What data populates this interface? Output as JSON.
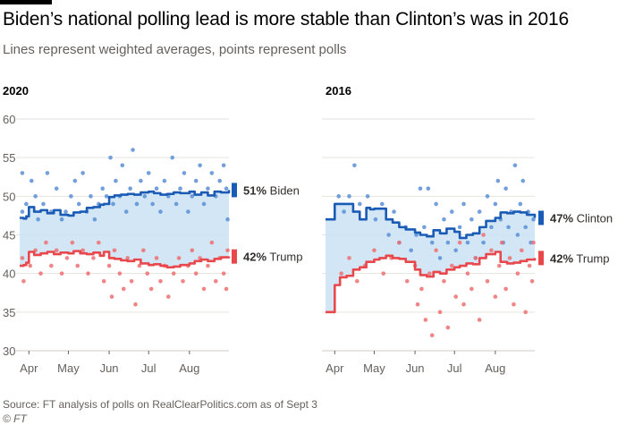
{
  "title": "Biden’s national polling lead is more stable than Clinton’s was in 2016",
  "subtitle": "Lines represent weighted averages, points represent polls",
  "source": "Source: FT analysis of polls on RealClearPolitics.com as of Sept 3",
  "credit": "© FT",
  "colors": {
    "dem": "#1a5bb5",
    "rep": "#e8474c",
    "dem_points": "#5b8fd6",
    "rep_points": "#ee6e70",
    "lead_fill": "#cde3f4",
    "grid": "#e6e2de",
    "axis_text": "#66605c"
  },
  "chart_data": [
    {
      "type": "line",
      "panel_title": "2020",
      "x_unit": "date (day of year)",
      "ylim": [
        30,
        60
      ],
      "yticks": [
        30,
        35,
        40,
        45,
        50,
        55,
        60
      ],
      "xlim": [
        "Mar 25",
        "Aug 31"
      ],
      "xtick_labels": [
        "Apr",
        "May",
        "Jun",
        "Jul",
        "Aug"
      ],
      "shaded_area": "between series",
      "grid": true,
      "series": [
        {
          "name": "Biden",
          "party": "dem",
          "end_label_value": "51%",
          "x": [
            "Mar 25",
            "Mar 28",
            "Mar 30",
            "Apr 1",
            "Apr 5",
            "Apr 10",
            "Apr 15",
            "Apr 20",
            "Apr 25",
            "May 1",
            "May 5",
            "May 10",
            "May 15",
            "May 20",
            "May 25",
            "May 28",
            "Jun 1",
            "Jun 5",
            "Jun 10",
            "Jun 15",
            "Jun 20",
            "Jun 25",
            "Jul 1",
            "Jul 5",
            "Jul 10",
            "Jul 15",
            "Jul 20",
            "Jul 25",
            "Aug 1",
            "Aug 5",
            "Aug 10",
            "Aug 15",
            "Aug 20",
            "Aug 25",
            "Aug 31"
          ],
          "values": [
            47.2,
            47.1,
            47.4,
            48.6,
            48.0,
            48.2,
            47.8,
            48.2,
            47.6,
            47.5,
            47.9,
            48.0,
            48.5,
            48.6,
            48.9,
            49.0,
            49.9,
            50.1,
            50.2,
            50.3,
            50.2,
            50.5,
            50.6,
            50.4,
            50.2,
            50.3,
            50.5,
            50.4,
            50.6,
            50.2,
            50.5,
            50.1,
            50.6,
            50.5,
            50.8
          ]
        },
        {
          "name": "Trump",
          "party": "rep",
          "end_label_value": "42%",
          "x": [
            "Mar 25",
            "Mar 28",
            "Mar 30",
            "Apr 1",
            "Apr 5",
            "Apr 10",
            "Apr 15",
            "Apr 20",
            "Apr 25",
            "May 1",
            "May 5",
            "May 10",
            "May 15",
            "May 20",
            "May 25",
            "May 28",
            "Jun 1",
            "Jun 5",
            "Jun 10",
            "Jun 15",
            "Jun 20",
            "Jun 25",
            "Jul 1",
            "Jul 5",
            "Jul 10",
            "Jul 15",
            "Jul 20",
            "Jul 25",
            "Aug 1",
            "Aug 5",
            "Aug 10",
            "Aug 15",
            "Aug 20",
            "Aug 25",
            "Aug 31"
          ],
          "values": [
            41.0,
            41.1,
            41.4,
            42.8,
            42.4,
            42.6,
            42.8,
            42.5,
            42.7,
            42.6,
            42.9,
            42.6,
            42.5,
            42.7,
            42.3,
            42.8,
            42.0,
            41.9,
            41.7,
            41.6,
            41.8,
            41.3,
            41.1,
            41.2,
            41.0,
            40.8,
            40.9,
            41.1,
            41.3,
            41.6,
            41.8,
            41.6,
            41.9,
            42.1,
            42.2
          ]
        }
      ],
      "poll_points": {
        "Biden": [
          [
            "Mar 27",
            53
          ],
          [
            "Mar 27",
            48
          ],
          [
            "Mar 30",
            49
          ],
          [
            "Apr 3",
            52
          ],
          [
            "Apr 6",
            50
          ],
          [
            "Apr 8",
            47
          ],
          [
            "Apr 12",
            49
          ],
          [
            "Apr 15",
            53
          ],
          [
            "Apr 18",
            48
          ],
          [
            "Apr 22",
            51
          ],
          [
            "Apr 26",
            47
          ],
          [
            "Apr 29",
            48
          ],
          [
            "May 3",
            50
          ],
          [
            "May 6",
            52
          ],
          [
            "May 9",
            49
          ],
          [
            "May 12",
            53
          ],
          [
            "May 15",
            48
          ],
          [
            "May 18",
            50
          ],
          [
            "May 21",
            47
          ],
          [
            "May 24",
            49
          ],
          [
            "May 27",
            51
          ],
          [
            "May 30",
            50
          ],
          [
            "Jun 2",
            55
          ],
          [
            "Jun 4",
            49
          ],
          [
            "Jun 6",
            52
          ],
          [
            "Jun 9",
            50
          ],
          [
            "Jun 11",
            54
          ],
          [
            "Jun 14",
            48
          ],
          [
            "Jun 17",
            51
          ],
          [
            "Jun 19",
            56
          ],
          [
            "Jun 22",
            49
          ],
          [
            "Jun 25",
            52
          ],
          [
            "Jun 28",
            50
          ],
          [
            "Jul 1",
            53
          ],
          [
            "Jul 4",
            49
          ],
          [
            "Jul 7",
            51
          ],
          [
            "Jul 10",
            48
          ],
          [
            "Jul 13",
            52
          ],
          [
            "Jul 16",
            50
          ],
          [
            "Jul 19",
            55
          ],
          [
            "Jul 22",
            49
          ],
          [
            "Jul 25",
            51
          ],
          [
            "Jul 28",
            53
          ],
          [
            "Jul 31",
            48
          ],
          [
            "Aug 3",
            50
          ],
          [
            "Aug 6",
            52
          ],
          [
            "Aug 9",
            54
          ],
          [
            "Aug 12",
            49
          ],
          [
            "Aug 15",
            51
          ],
          [
            "Aug 18",
            53
          ],
          [
            "Aug 21",
            50
          ],
          [
            "Aug 24",
            52
          ],
          [
            "Aug 27",
            54
          ],
          [
            "Aug 29",
            51
          ],
          [
            "Aug 30",
            47
          ]
        ],
        "Trump": [
          [
            "Mar 27",
            42
          ],
          [
            "Mar 28",
            39
          ],
          [
            "Apr 2",
            41
          ],
          [
            "Apr 6",
            43
          ],
          [
            "Apr 10",
            40
          ],
          [
            "Apr 14",
            44
          ],
          [
            "Apr 18",
            41
          ],
          [
            "Apr 22",
            43
          ],
          [
            "Apr 26",
            40
          ],
          [
            "Apr 30",
            42
          ],
          [
            "May 4",
            44
          ],
          [
            "May 8",
            41
          ],
          [
            "May 12",
            43
          ],
          [
            "May 16",
            40
          ],
          [
            "May 20",
            42
          ],
          [
            "May 24",
            44
          ],
          [
            "May 28",
            39
          ],
          [
            "Jun 1",
            41
          ],
          [
            "Jun 3",
            37
          ],
          [
            "Jun 5",
            43
          ],
          [
            "Jun 9",
            40
          ],
          [
            "Jun 12",
            38
          ],
          [
            "Jun 15",
            42
          ],
          [
            "Jun 18",
            39
          ],
          [
            "Jun 21",
            36
          ],
          [
            "Jun 24",
            41
          ],
          [
            "Jun 27",
            43
          ],
          [
            "Jun 30",
            40
          ],
          [
            "Jul 3",
            38
          ],
          [
            "Jul 7",
            42
          ],
          [
            "Jul 10",
            39
          ],
          [
            "Jul 13",
            41
          ],
          [
            "Jul 16",
            37
          ],
          [
            "Jul 20",
            40
          ],
          [
            "Jul 24",
            42
          ],
          [
            "Jul 27",
            39
          ],
          [
            "Jul 31",
            41
          ],
          [
            "Aug 3",
            43
          ],
          [
            "Aug 6",
            40
          ],
          [
            "Aug 9",
            42
          ],
          [
            "Aug 12",
            38
          ],
          [
            "Aug 15",
            41
          ],
          [
            "Aug 18",
            44
          ],
          [
            "Aug 21",
            39
          ],
          [
            "Aug 24",
            42
          ],
          [
            "Aug 27",
            40
          ],
          [
            "Aug 29",
            38
          ],
          [
            "Aug 30",
            43
          ]
        ]
      }
    },
    {
      "type": "line",
      "panel_title": "2016",
      "x_unit": "date (day of year)",
      "ylim": [
        30,
        60
      ],
      "yticks": [
        30,
        35,
        40,
        45,
        50,
        55,
        60
      ],
      "xlim": [
        "Mar 25",
        "Aug 31"
      ],
      "xtick_labels": [
        "Apr",
        "May",
        "Jun",
        "Jul",
        "Aug"
      ],
      "shaded_area": "between series",
      "grid": true,
      "series": [
        {
          "name": "Clinton",
          "party": "dem",
          "end_label_value": "47%",
          "x": [
            "Mar 25",
            "Mar 31",
            "Apr 1",
            "Apr 10",
            "Apr 15",
            "Apr 20",
            "Apr 25",
            "Apr 28",
            "May 1",
            "May 10",
            "May 15",
            "May 20",
            "May 25",
            "Jun 1",
            "Jun 5",
            "Jun 10",
            "Jun 15",
            "Jun 20",
            "Jun 25",
            "Jul 1",
            "Jul 5",
            "Jul 10",
            "Jul 15",
            "Jul 20",
            "Jul 25",
            "Aug 1",
            "Aug 5",
            "Aug 10",
            "Aug 15",
            "Aug 20",
            "Aug 25",
            "Aug 31"
          ],
          "values": [
            47.0,
            47.0,
            49.0,
            49.0,
            48.0,
            47.0,
            48.5,
            48.3,
            48.4,
            47.0,
            46.6,
            46.0,
            45.7,
            45.3,
            45.0,
            44.8,
            45.6,
            45.2,
            45.8,
            45.4,
            44.6,
            45.0,
            45.2,
            46.0,
            46.8,
            47.2,
            47.9,
            47.8,
            48.0,
            47.9,
            47.6,
            47.2
          ]
        },
        {
          "name": "Trump",
          "party": "rep",
          "end_label_value": "42%",
          "x": [
            "Mar 25",
            "Mar 31",
            "Apr 1",
            "Apr 5",
            "Apr 10",
            "Apr 15",
            "Apr 20",
            "Apr 25",
            "May 1",
            "May 5",
            "May 10",
            "May 15",
            "May 20",
            "May 25",
            "Jun 1",
            "Jun 5",
            "Jun 10",
            "Jun 15",
            "Jun 20",
            "Jun 25",
            "Jul 1",
            "Jul 5",
            "Jul 10",
            "Jul 15",
            "Jul 20",
            "Jul 25",
            "Aug 1",
            "Aug 5",
            "Aug 10",
            "Aug 15",
            "Aug 20",
            "Aug 25",
            "Aug 31"
          ],
          "values": [
            35.0,
            35.0,
            38.5,
            39.5,
            39.7,
            40.5,
            40.8,
            41.5,
            41.8,
            42.0,
            42.3,
            42.0,
            41.9,
            41.5,
            40.5,
            39.8,
            39.6,
            40.2,
            40.0,
            40.5,
            40.8,
            41.0,
            41.3,
            41.2,
            42.0,
            42.5,
            42.8,
            41.5,
            41.3,
            41.4,
            41.6,
            41.8,
            42.0
          ]
        }
      ],
      "poll_points": {
        "Clinton": [
          [
            "Apr 4",
            50
          ],
          [
            "Apr 8",
            48
          ],
          [
            "Apr 12",
            50
          ],
          [
            "Apr 16",
            54
          ],
          [
            "Apr 20",
            49
          ],
          [
            "Apr 26",
            50
          ],
          [
            "May 2",
            47
          ],
          [
            "May 7",
            49
          ],
          [
            "May 12",
            45
          ],
          [
            "May 16",
            48
          ],
          [
            "May 20",
            44
          ],
          [
            "May 25",
            46
          ],
          [
            "May 29",
            43
          ],
          [
            "Jun 2",
            45
          ],
          [
            "Jun 5",
            51
          ],
          [
            "Jun 8",
            46
          ],
          [
            "Jun 11",
            51
          ],
          [
            "Jun 14",
            44
          ],
          [
            "Jun 17",
            49
          ],
          [
            "Jun 20",
            42
          ],
          [
            "Jun 23",
            47
          ],
          [
            "Jun 26",
            44
          ],
          [
            "Jun 29",
            48
          ],
          [
            "Jul 2",
            43
          ],
          [
            "Jul 5",
            46
          ],
          [
            "Jul 8",
            49
          ],
          [
            "Jul 11",
            44
          ],
          [
            "Jul 14",
            47
          ],
          [
            "Jul 17",
            42
          ],
          [
            "Jul 20",
            48
          ],
          [
            "Jul 23",
            44
          ],
          [
            "Jul 26",
            50
          ],
          [
            "Jul 29",
            46
          ],
          [
            "Aug 1",
            49
          ],
          [
            "Aug 3",
            52
          ],
          [
            "Aug 5",
            47
          ],
          [
            "Aug 7",
            44
          ],
          [
            "Aug 9",
            51
          ],
          [
            "Aug 11",
            46
          ],
          [
            "Aug 13",
            48
          ],
          [
            "Aug 16",
            54
          ],
          [
            "Aug 18",
            45
          ],
          [
            "Aug 20",
            49
          ],
          [
            "Aug 22",
            52
          ],
          [
            "Aug 24",
            46
          ],
          [
            "Aug 26",
            48
          ],
          [
            "Aug 28",
            44
          ],
          [
            "Aug 30",
            47
          ]
        ],
        "Trump": [
          [
            "Apr 6",
            40
          ],
          [
            "Apr 12",
            42
          ],
          [
            "Apr 18",
            39
          ],
          [
            "Apr 24",
            41
          ],
          [
            "May 1",
            43
          ],
          [
            "May 8",
            40
          ],
          [
            "May 14",
            42
          ],
          [
            "May 20",
            44
          ],
          [
            "May 26",
            39
          ],
          [
            "Jun 1",
            41
          ],
          [
            "Jun 3",
            36
          ],
          [
            "Jun 6",
            38
          ],
          [
            "Jun 9",
            34
          ],
          [
            "Jun 12",
            40
          ],
          [
            "Jun 14",
            32
          ],
          [
            "Jun 17",
            43
          ],
          [
            "Jun 20",
            35
          ],
          [
            "Jun 23",
            39
          ],
          [
            "Jun 26",
            33
          ],
          [
            "Jun 29",
            41
          ],
          [
            "Jul 2",
            37
          ],
          [
            "Jul 5",
            44
          ],
          [
            "Jul 8",
            36
          ],
          [
            "Jul 11",
            40
          ],
          [
            "Jul 14",
            38
          ],
          [
            "Jul 17",
            42
          ],
          [
            "Jul 20",
            34
          ],
          [
            "Jul 23",
            45
          ],
          [
            "Jul 26",
            39
          ],
          [
            "Jul 29",
            43
          ],
          [
            "Aug 1",
            37
          ],
          [
            "Aug 4",
            41
          ],
          [
            "Aug 6",
            44
          ],
          [
            "Aug 9",
            38
          ],
          [
            "Aug 12",
            42
          ],
          [
            "Aug 15",
            36
          ],
          [
            "Aug 18",
            40
          ],
          [
            "Aug 21",
            43
          ],
          [
            "Aug 24",
            35
          ],
          [
            "Aug 27",
            41
          ],
          [
            "Aug 29",
            39
          ],
          [
            "Aug 30",
            44
          ]
        ]
      }
    }
  ]
}
